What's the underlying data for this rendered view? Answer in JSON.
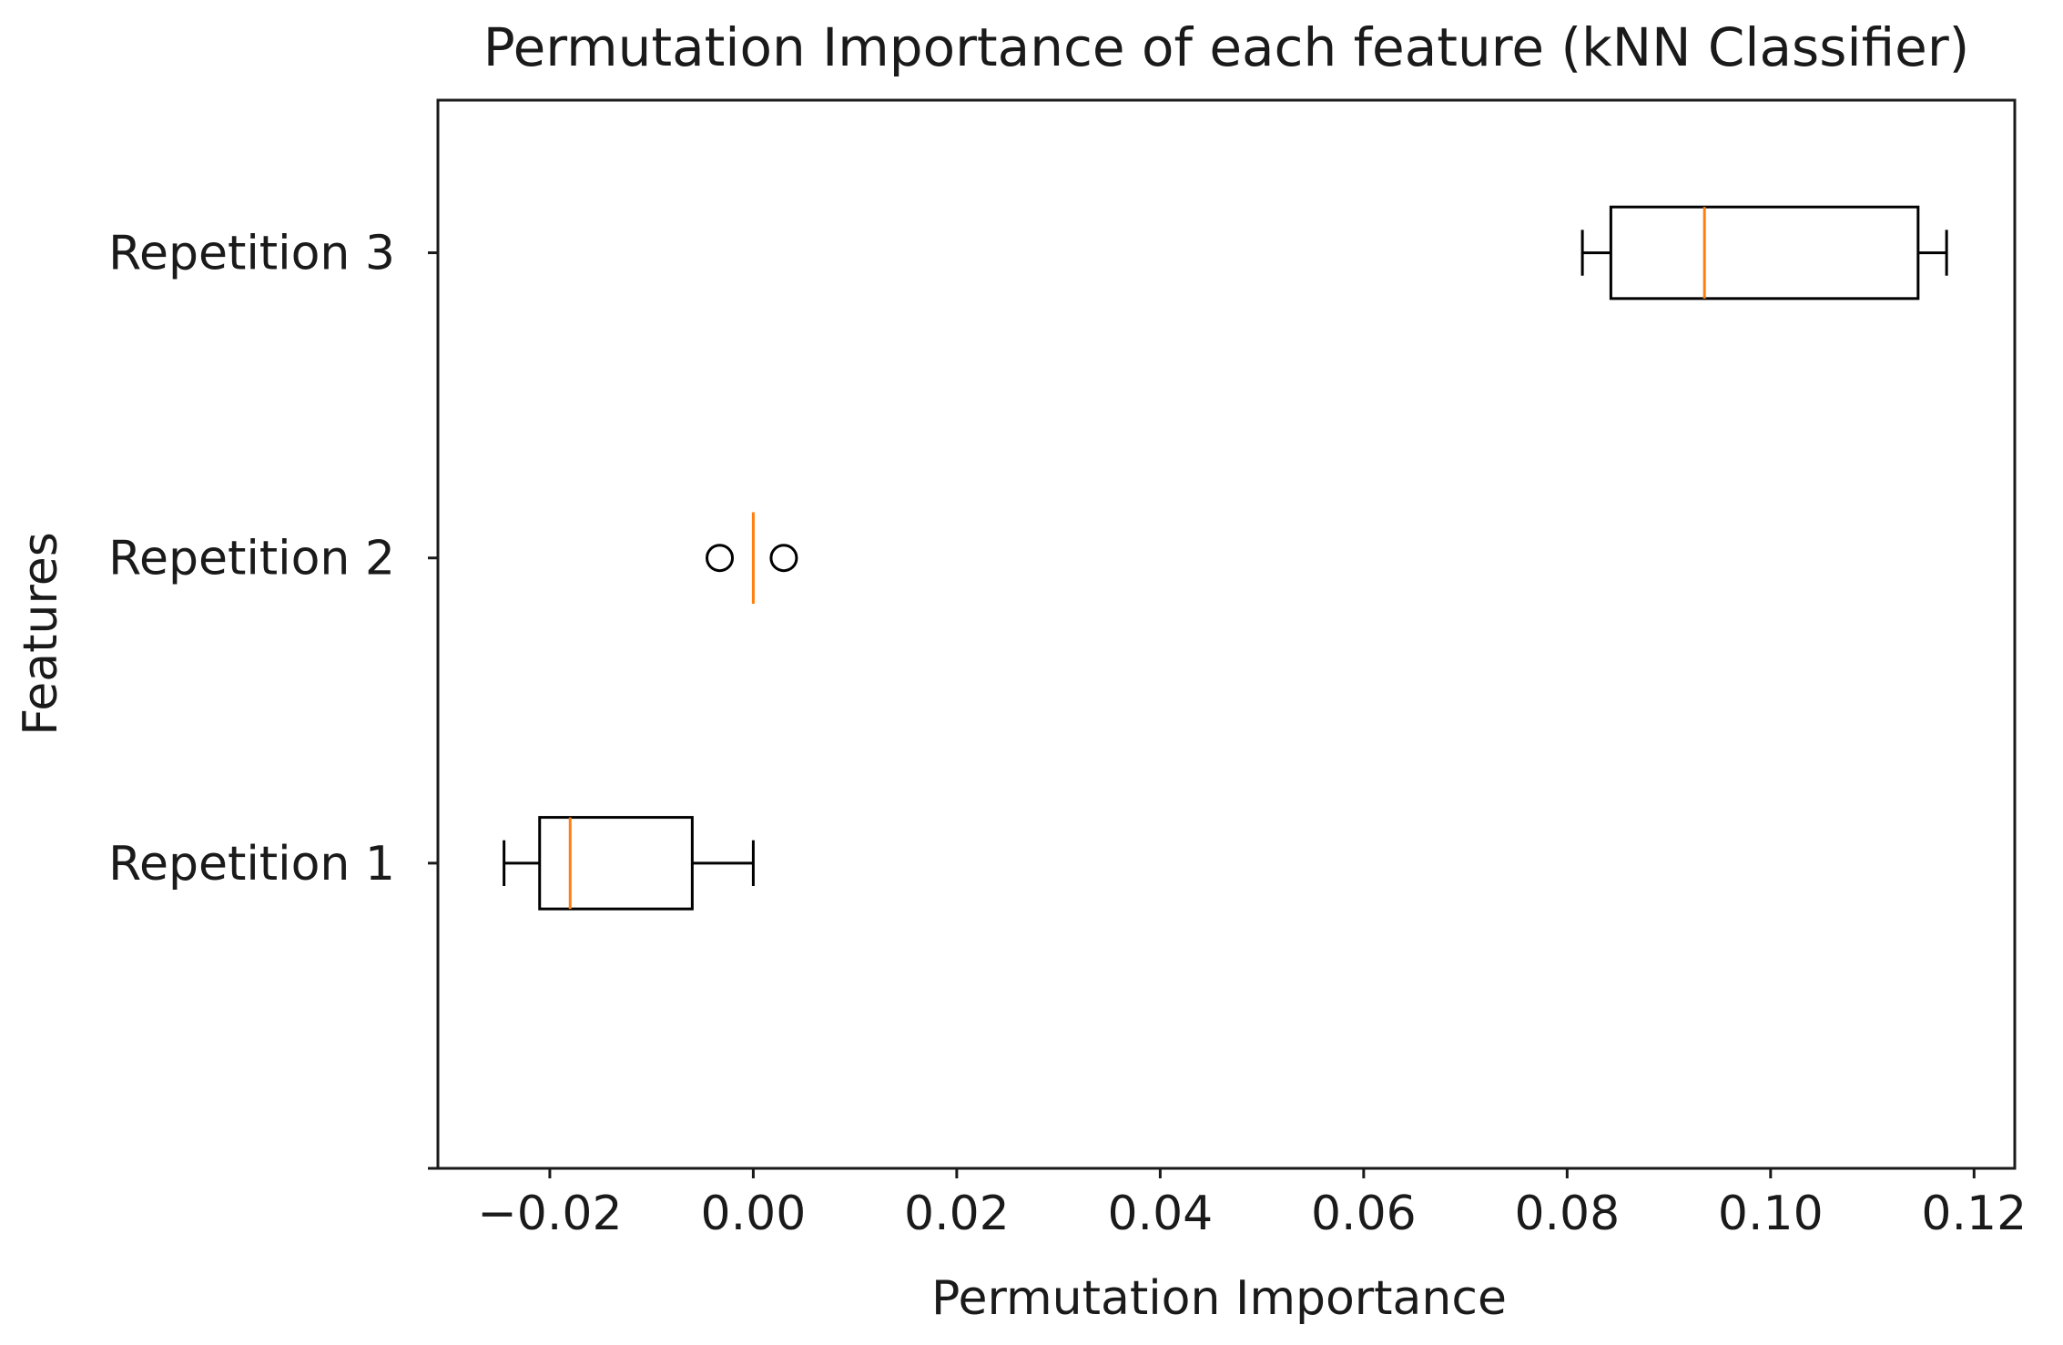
{
  "chart_data": {
    "type": "boxplot",
    "orientation": "horizontal",
    "title": "Permutation Importance of each feature (kNN Classifier)",
    "xlabel": "Permutation Importance",
    "ylabel": "Features",
    "xlim": [
      -0.031,
      0.124
    ],
    "x_ticks": [
      -0.02,
      0.0,
      0.02,
      0.04,
      0.06,
      0.08,
      0.1,
      0.12
    ],
    "x_tick_labels": [
      "−0.02",
      "0.00",
      "0.02",
      "0.04",
      "0.06",
      "0.08",
      "0.10",
      "0.12"
    ],
    "categories": [
      "Repetition 1",
      "Repetition 2",
      "Repetition 3"
    ],
    "boxes": [
      {
        "label": "Repetition 1",
        "whisker_low": -0.0245,
        "q1": -0.021,
        "median": -0.018,
        "q3": -0.006,
        "whisker_high": 0.0,
        "outliers": []
      },
      {
        "label": "Repetition 2",
        "whisker_low": 0.0,
        "q1": 0.0,
        "median": 0.0,
        "q3": 0.0,
        "whisker_high": 0.0,
        "outliers": [
          -0.0033,
          0.003
        ]
      },
      {
        "label": "Repetition 3",
        "whisker_low": 0.0815,
        "q1": 0.0843,
        "median": 0.0935,
        "q3": 0.1145,
        "whisker_high": 0.1173,
        "outliers": []
      }
    ],
    "grid": false,
    "legend": false,
    "colors": {
      "box": "#000000",
      "median": "#ff7f0e",
      "axes": "#1a1a1a"
    }
  }
}
